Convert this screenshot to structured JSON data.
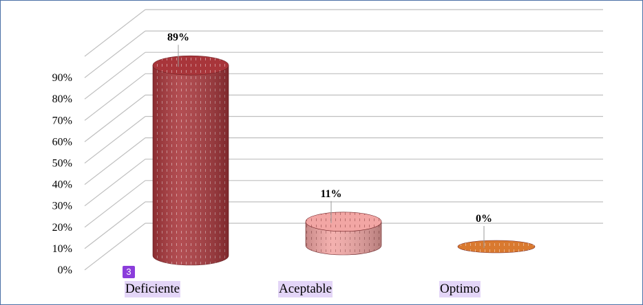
{
  "chart_data": {
    "type": "bar",
    "subtype": "3d-cylinder",
    "categories": [
      "Deficiente",
      "Aceptable",
      "Optimo"
    ],
    "values": [
      89,
      11,
      0
    ],
    "data_labels": [
      "89%",
      "11%",
      "0%"
    ],
    "y_ticks": [
      "0%",
      "10%",
      "20%",
      "30%",
      "40%",
      "50%",
      "60%",
      "70%",
      "80%",
      "90%"
    ],
    "ylim": [
      0,
      100
    ],
    "grid": true,
    "colors": [
      "#a8353a",
      "#f2a6a4",
      "#d9792f"
    ]
  },
  "badge": "3"
}
